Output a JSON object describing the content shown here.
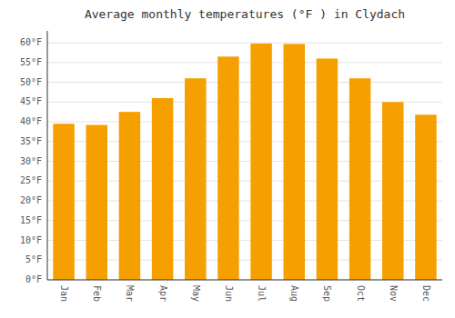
{
  "chart_data": {
    "type": "bar",
    "title": "Average monthly temperatures (°F ) in Clydach",
    "categories": [
      "Jan",
      "Feb",
      "Mar",
      "Apr",
      "May",
      "Jun",
      "Jul",
      "Aug",
      "Sep",
      "Oct",
      "Nov",
      "Dec"
    ],
    "values": [
      39.5,
      39.2,
      42.5,
      46.0,
      51.0,
      56.5,
      59.8,
      59.7,
      56.0,
      51.0,
      45.0,
      41.8
    ],
    "color": "#F5A000",
    "ylim": [
      0,
      63
    ],
    "yticks": [
      {
        "value": 0,
        "label": "0°F"
      },
      {
        "value": 5,
        "label": "5°F"
      },
      {
        "value": 10,
        "label": "10°F"
      },
      {
        "value": 15,
        "label": "15°F"
      },
      {
        "value": 20,
        "label": "20°F"
      },
      {
        "value": 25,
        "label": "25°F"
      },
      {
        "value": 30,
        "label": "30°F"
      },
      {
        "value": 35,
        "label": "35°F"
      },
      {
        "value": 40,
        "label": "40°F"
      },
      {
        "value": 45,
        "label": "45°F"
      },
      {
        "value": 50,
        "label": "50°F"
      },
      {
        "value": 55,
        "label": "55°F"
      },
      {
        "value": 60,
        "label": "60°F"
      }
    ],
    "grid": true
  }
}
